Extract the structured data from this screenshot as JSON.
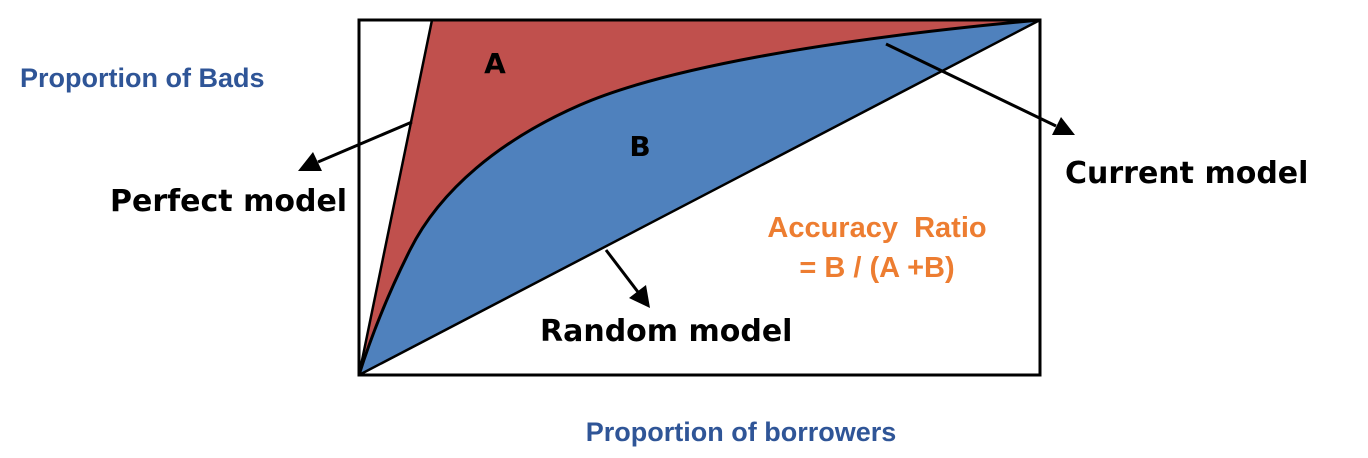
{
  "axes": {
    "y_label": "Proportion of Bads",
    "x_label": "Proportion of borrowers"
  },
  "regions": {
    "a_label": "A",
    "b_label": "B"
  },
  "models": {
    "perfect": "Perfect model",
    "current": "Current model",
    "random": "Random model"
  },
  "formula": {
    "title": "Accuracy  Ratio",
    "expression": "= B / (A +B)"
  },
  "colors": {
    "region_a": "#c0504d",
    "region_b": "#4f81bd",
    "axis_text": "#2f5597",
    "formula_text": "#ed7d31",
    "ink": "#000000"
  }
}
